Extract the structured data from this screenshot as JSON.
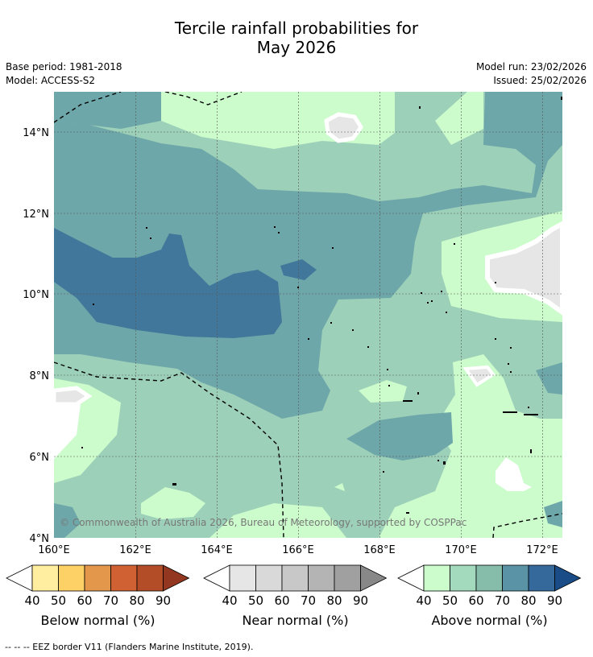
{
  "title": {
    "line1": "Tercile rainfall probabilities for",
    "line2": "May 2026"
  },
  "meta": {
    "base_period": "Base period: 1981-2018",
    "model": "Model: ACCESS-S2",
    "model_run": "Model run: 23/02/2026",
    "issued": "Issued: 25/02/2026"
  },
  "map": {
    "lon_ticks": [
      "160°E",
      "162°E",
      "164°E",
      "166°E",
      "168°E",
      "170°E",
      "172°E"
    ],
    "lat_ticks": [
      "14°N",
      "12°N",
      "10°N",
      "8°N",
      "6°N",
      "4°N"
    ],
    "copyright": "© Commonwealth of Australia 2026, Bureau of Meteorology, supported by COSPPac"
  },
  "legend": {
    "below": {
      "label": "Below normal (%)",
      "ticks": [
        "40",
        "50",
        "60",
        "70",
        "80",
        "90"
      ],
      "colors": [
        "#ffeda0",
        "#fed166",
        "#e3974a",
        "#cf6133",
        "#b34d28",
        "#933720"
      ]
    },
    "near": {
      "label": "Near normal (%)",
      "ticks": [
        "40",
        "50",
        "60",
        "70",
        "80",
        "90"
      ],
      "colors": [
        "#e6e6e6",
        "#d9d9d9",
        "#c8c8c8",
        "#b4b4b4",
        "#a0a0a0",
        "#888888"
      ]
    },
    "above": {
      "label": "Above normal (%)",
      "ticks": [
        "40",
        "50",
        "60",
        "70",
        "80",
        "90"
      ],
      "colors": [
        "#ccfccc",
        "#a3d9bd",
        "#85bcaa",
        "#5a93a6",
        "#36699b",
        "#1a4c88"
      ]
    }
  },
  "footer": "-- -- -- EEZ border V11 (Flanders Marine Institute, 2019)."
}
